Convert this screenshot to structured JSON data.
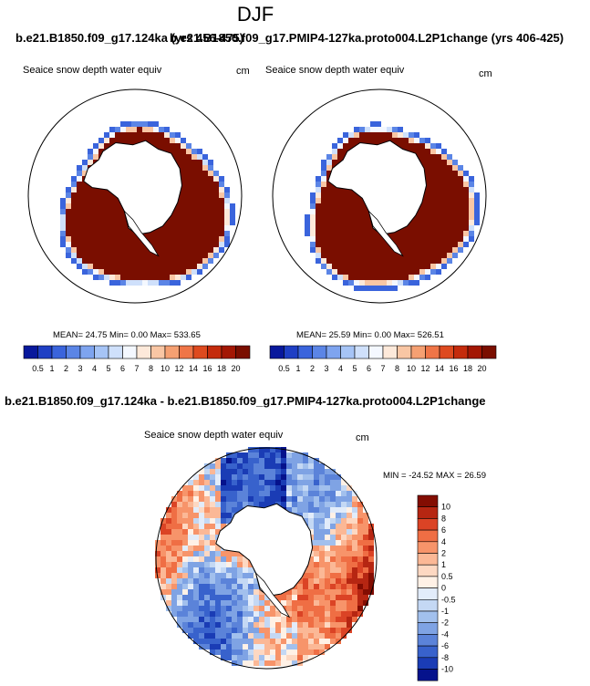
{
  "chart_data": {
    "type": "heatmap",
    "season": "DJF",
    "header_left": "b.e21.B1850.f09_g17.124ka (yrs 456-475)",
    "header_right": "b.e21.B1850.f09_g17.PMIP4-127ka.proto004.L2P1change (yrs 406-425)",
    "diff_title": "b.e21.B1850.f09_g17.124ka - b.e21.B1850.f09_g17.PMIP4-127ka.proto004.L2P1change",
    "panels": [
      {
        "id": "left",
        "variable": "Seaice snow depth water equiv",
        "units": "cm",
        "stats": "MEAN=  24.75  Min=   0.00  Max= 533.65",
        "mean": 24.75,
        "min": 0.0,
        "max": 533.65
      },
      {
        "id": "right",
        "variable": "Seaice snow depth water equiv",
        "units": "cm",
        "stats": "MEAN=  25.59  Min=   0.00  Max= 526.51",
        "mean": 25.59,
        "min": 0.0,
        "max": 526.51
      },
      {
        "id": "diff",
        "variable": "Seaice snow depth water equiv",
        "units": "cm",
        "stats": "MIN = -24.52 MAX =  26.59",
        "min": -24.52,
        "max": 26.59
      }
    ],
    "abs_colorbar": {
      "labels": [
        "0.5",
        "1",
        "2",
        "3",
        "4",
        "5",
        "6",
        "7",
        "8",
        "10",
        "12",
        "14",
        "16",
        "18",
        "20"
      ],
      "colors": [
        "#08189c",
        "#1f3fc4",
        "#3a64dc",
        "#5b85e6",
        "#7ea4ef",
        "#a6c4f6",
        "#cfe0fb",
        "#f4f8ff",
        "#fde9da",
        "#f9c6a4",
        "#f5a072",
        "#ef7547",
        "#de4a1f",
        "#c42b0c",
        "#a31704",
        "#7a0e00"
      ]
    },
    "diff_colorbar": {
      "labels": [
        "10",
        "8",
        "6",
        "4",
        "2",
        "1",
        "0.5",
        "0",
        "-0.5",
        "-1",
        "-2",
        "-4",
        "-6",
        "-8",
        "-10"
      ],
      "colors": [
        "#830d02",
        "#b62612",
        "#db4325",
        "#ef6e44",
        "#f7946a",
        "#fbb896",
        "#fdd8c2",
        "#fff1e6",
        "#e2ecfa",
        "#c4d8f4",
        "#a2c0ed",
        "#7fa3e4",
        "#5b83d9",
        "#3862cc",
        "#1a3cb5",
        "#05128c"
      ]
    }
  }
}
